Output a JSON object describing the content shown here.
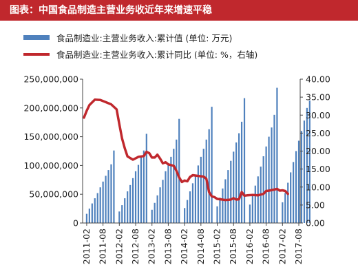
{
  "title": "图表：中国食品制造主营业务收近年来增速平稳",
  "chart_data": {
    "type": "bar+line",
    "title": "图表：中国食品制造主营业务收近年来增速平稳",
    "colors": {
      "bar": "#4f81bd",
      "line": "#c0282d",
      "title_bg": "#c0282d"
    },
    "legend": [
      "食品制造业:主营业务收入:累计值 (单位: 万元)",
      "食品制造业:主营业务收入:累计同比 (单位: %，右轴)"
    ],
    "legend_position": "top-left",
    "y_left": {
      "min": 0,
      "max": 250000000,
      "ticks": [
        "0",
        "50,000,000",
        "100,000,000",
        "150,000,000",
        "200,000,000",
        "250,000,000"
      ]
    },
    "y_right": {
      "min": 0,
      "max": 40,
      "ticks": [
        "0.00",
        "5.00",
        "10.00",
        "15.00",
        "20.00",
        "25.00",
        "30.00",
        "35.00",
        "40.00"
      ]
    },
    "x_ticks": [
      "2011-02",
      "2011-08",
      "2012-02",
      "2012-08",
      "2013-02",
      "2013-08",
      "2014-02",
      "2014-08",
      "2015-02",
      "2015-08",
      "2016-02",
      "2016-08",
      "2017-02",
      "2017-08"
    ],
    "series": [
      {
        "name": "食品制造业:主营业务收入:累计值 (单位: 万元)",
        "type": "bar",
        "axis": "left",
        "start": "2011-02",
        "values": [
          16000000,
          25000000,
          34000000,
          43000000,
          52000000,
          62000000,
          72000000,
          82000000,
          92000000,
          102000000,
          126000000,
          20000000,
          31000000,
          43000000,
          55000000,
          66000000,
          78000000,
          90000000,
          101000000,
          114000000,
          126000000,
          155000000,
          23000000,
          35000000,
          48000000,
          62000000,
          75000000,
          90000000,
          102000000,
          115000000,
          129000000,
          145000000,
          181000000,
          26000000,
          40000000,
          55000000,
          69000000,
          84000000,
          100000000,
          115000000,
          129000000,
          145000000,
          163000000,
          202000000,
          29000000,
          44000000,
          60000000,
          76000000,
          92000000,
          108000000,
          124000000,
          140000000,
          156000000,
          176000000,
          217000000,
          32000000,
          48000000,
          65000000,
          81000000,
          98000000,
          116000000,
          133000000,
          150000000,
          166000000,
          188000000,
          235000000,
          36000000,
          52000000,
          70000000,
          88000000,
          106000000,
          125000000,
          143000000,
          160000000,
          178000000,
          200000000,
          213000000
        ]
      },
      {
        "name": "食品制造业:主营业务收入:累计同比 (单位: %，右轴)",
        "type": "line",
        "axis": "right",
        "points": [
          [
            0,
            29.3
          ],
          [
            1,
            31.2
          ],
          [
            2,
            32.8
          ],
          [
            4,
            34.3
          ],
          [
            6,
            34.2
          ],
          [
            8,
            33.6
          ],
          [
            10,
            33.0
          ],
          [
            12,
            31.6
          ],
          [
            13,
            27.5
          ],
          [
            14,
            23.5
          ],
          [
            15,
            20.8
          ],
          [
            16,
            18.5
          ],
          [
            18,
            17.6
          ],
          [
            20,
            18.4
          ],
          [
            22,
            18.6
          ],
          [
            23,
            19.8
          ],
          [
            24,
            19.4
          ],
          [
            25,
            18.2
          ],
          [
            26,
            18.2
          ],
          [
            27,
            19.0
          ],
          [
            28,
            17.9
          ],
          [
            29,
            16.6
          ],
          [
            30,
            16.9
          ],
          [
            31,
            16.3
          ],
          [
            33,
            15.9
          ],
          [
            34,
            14.5
          ],
          [
            35,
            12.7
          ],
          [
            36,
            11.4
          ],
          [
            37,
            11.8
          ],
          [
            38,
            11.6
          ],
          [
            39,
            12.8
          ],
          [
            40,
            13.3
          ],
          [
            42,
            13.1
          ],
          [
            44,
            12.9
          ],
          [
            45,
            12.3
          ],
          [
            46,
            8.6
          ],
          [
            47,
            7.4
          ],
          [
            48,
            7.2
          ],
          [
            49,
            6.7
          ],
          [
            50,
            6.6
          ],
          [
            52,
            6.4
          ],
          [
            54,
            6.5
          ],
          [
            55,
            6.9
          ],
          [
            56,
            6.5
          ],
          [
            57,
            6.6
          ],
          [
            58,
            8.6
          ],
          [
            59,
            7.6
          ],
          [
            60,
            7.7
          ],
          [
            62,
            7.8
          ],
          [
            64,
            7.7
          ],
          [
            65,
            7.9
          ],
          [
            66,
            8.1
          ],
          [
            67,
            8.9
          ],
          [
            68,
            9.0
          ],
          [
            70,
            9.3
          ],
          [
            71,
            9.5
          ],
          [
            72,
            9.0
          ],
          [
            73,
            9.1
          ],
          [
            74,
            8.9
          ],
          [
            75,
            8.1
          ]
        ]
      }
    ]
  }
}
